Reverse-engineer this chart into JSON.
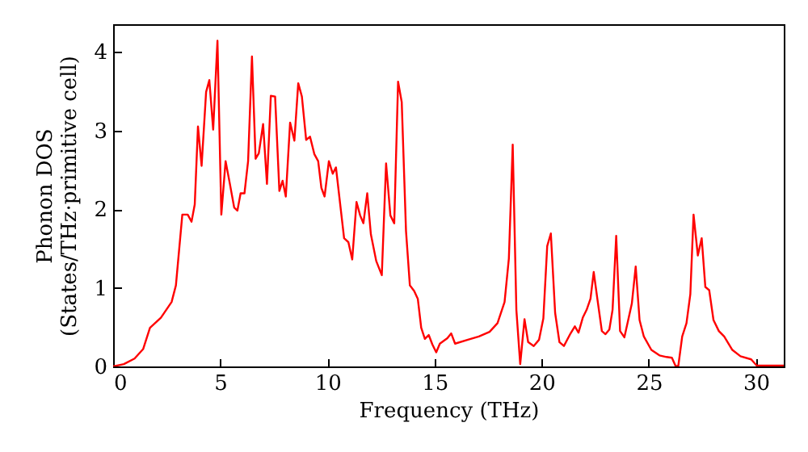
{
  "chart_data": {
    "type": "line",
    "xlabel": "Frequency (THz)",
    "ylabel": "Phonon DOS\n(States/THz·primitive cell)",
    "xlim": [
      0,
      31.3
    ],
    "ylim": [
      0,
      4.35
    ],
    "xticks": [
      0,
      5,
      10,
      15,
      20,
      25,
      30
    ],
    "yticks": [
      0,
      1,
      2,
      3,
      4
    ],
    "grid": false,
    "marker": "none",
    "line_style": "solid",
    "x": [
      0,
      0.5,
      1.0,
      1.4,
      1.72,
      2.23,
      2.73,
      2.93,
      3.23,
      3.48,
      3.66,
      3.81,
      3.96,
      4.13,
      4.34,
      4.49,
      4.67,
      4.87,
      5.05,
      5.25,
      5.45,
      5.65,
      5.8,
      5.95,
      6.13,
      6.3,
      6.48,
      6.65,
      6.8,
      7.0,
      7.18,
      7.36,
      7.56,
      7.76,
      7.91,
      8.06,
      8.26,
      8.46,
      8.64,
      8.81,
      9.01,
      9.19,
      9.39,
      9.57,
      9.72,
      9.87,
      10.07,
      10.25,
      10.4,
      10.78,
      10.98,
      11.16,
      11.36,
      11.53,
      11.68,
      11.86,
      12.03,
      12.28,
      12.54,
      12.74,
      12.94,
      13.12,
      13.3,
      13.47,
      13.67,
      13.85,
      14.05,
      14.22,
      14.38,
      14.55,
      14.73,
      14.9,
      15.08,
      15.25,
      15.6,
      15.78,
      15.96,
      16.56,
      17.07,
      17.57,
      17.94,
      18.27,
      18.47,
      18.65,
      18.82,
      19.0,
      19.2,
      19.37,
      19.63,
      19.88,
      20.08,
      20.26,
      20.43,
      20.63,
      20.83,
      21.04,
      21.35,
      21.55,
      21.72,
      21.92,
      22.1,
      22.28,
      22.43,
      22.6,
      22.81,
      22.98,
      23.16,
      23.31,
      23.48,
      23.66,
      23.86,
      24.04,
      24.21,
      24.39,
      24.57,
      24.77,
      25.12,
      25.5,
      25.83,
      26.08,
      26.26,
      26.38,
      26.56,
      26.76,
      26.94,
      27.09,
      27.29,
      27.47,
      27.64,
      27.82,
      28.02,
      28.27,
      28.52,
      28.9,
      29.28,
      29.78,
      30.04,
      31.3
    ],
    "series": [
      {
        "color": "#ff0000",
        "values": [
          0,
          0.03,
          0.1,
          0.22,
          0.49,
          0.62,
          0.82,
          1.03,
          1.93,
          1.93,
          1.84,
          2.06,
          3.05,
          2.55,
          3.49,
          3.64,
          3.01,
          4.14,
          1.93,
          2.61,
          2.32,
          2.02,
          1.98,
          2.2,
          2.2,
          2.61,
          3.94,
          2.64,
          2.71,
          3.08,
          2.32,
          3.44,
          3.43,
          2.23,
          2.36,
          2.16,
          3.1,
          2.87,
          3.6,
          3.43,
          2.88,
          2.92,
          2.7,
          2.61,
          2.27,
          2.16,
          2.61,
          2.45,
          2.53,
          1.63,
          1.58,
          1.36,
          2.09,
          1.92,
          1.82,
          2.2,
          1.68,
          1.34,
          1.16,
          2.58,
          1.92,
          1.82,
          3.62,
          3.36,
          1.72,
          1.03,
          0.96,
          0.86,
          0.49,
          0.35,
          0.4,
          0.28,
          0.18,
          0.29,
          0.36,
          0.42,
          0.29,
          0.34,
          0.38,
          0.44,
          0.55,
          0.82,
          1.37,
          2.82,
          0.72,
          0.03,
          0.6,
          0.31,
          0.26,
          0.34,
          0.61,
          1.53,
          1.69,
          0.68,
          0.31,
          0.26,
          0.42,
          0.51,
          0.43,
          0.62,
          0.72,
          0.86,
          1.2,
          0.86,
          0.45,
          0.41,
          0.47,
          0.72,
          1.66,
          0.45,
          0.37,
          0.59,
          0.8,
          1.27,
          0.59,
          0.38,
          0.21,
          0.14,
          0.12,
          0.11,
          0,
          0.01,
          0.38,
          0.55,
          0.92,
          1.93,
          1.41,
          1.63,
          1.01,
          0.97,
          0.59,
          0.45,
          0.38,
          0.21,
          0.13,
          0.09,
          0.01,
          0.01
        ]
      }
    ]
  }
}
